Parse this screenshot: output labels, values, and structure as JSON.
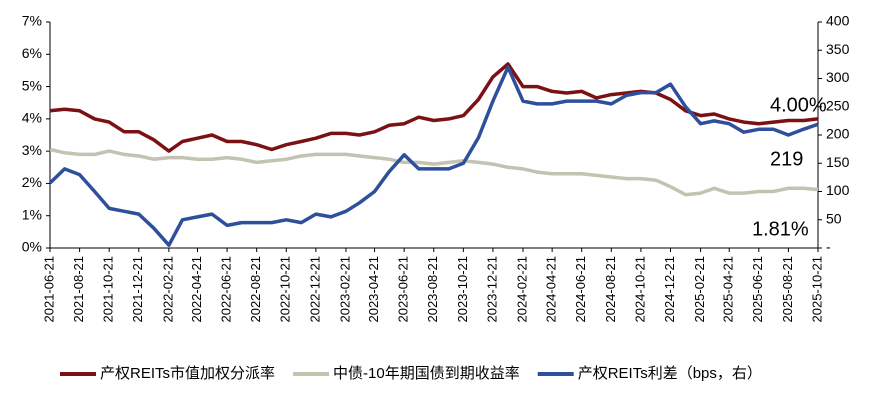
{
  "chart_data": {
    "type": "line",
    "x": [
      "2021-06-21",
      "2021-07-21",
      "2021-08-21",
      "2021-09-21",
      "2021-10-21",
      "2021-11-21",
      "2021-12-21",
      "2022-01-21",
      "2022-02-21",
      "2022-03-21",
      "2022-04-21",
      "2022-05-21",
      "2022-06-21",
      "2022-07-21",
      "2022-08-21",
      "2022-09-21",
      "2022-10-21",
      "2022-11-21",
      "2022-12-21",
      "2023-01-21",
      "2023-02-21",
      "2023-03-21",
      "2023-04-21",
      "2023-05-21",
      "2023-06-21",
      "2023-07-21",
      "2023-08-21",
      "2023-09-21",
      "2023-10-21",
      "2023-11-21",
      "2023-12-21",
      "2024-01-21",
      "2024-02-21",
      "2024-03-21",
      "2024-04-21",
      "2024-05-21",
      "2024-06-21",
      "2024-07-21",
      "2024-08-21",
      "2024-09-21",
      "2024-10-21",
      "2024-11-21",
      "2024-12-21",
      "2025-01-21",
      "2025-02-21",
      "2025-03-21",
      "2025-04-21",
      "2025-05-21",
      "2025-06-21",
      "2025-07-21",
      "2025-08-21",
      "2025-09-21",
      "2025-10-21"
    ],
    "xticks": [
      "2021-06-21",
      "2021-08-21",
      "2021-10-21",
      "2021-12-21",
      "2022-02-21",
      "2022-04-21",
      "2022-06-21",
      "2022-08-21",
      "2022-10-21",
      "2022-12-21",
      "2023-02-21",
      "2023-04-21",
      "2023-06-21",
      "2023-08-21",
      "2023-10-21",
      "2023-12-21",
      "2024-02-21",
      "2024-04-21",
      "2024-06-21",
      "2024-08-21",
      "2024-10-21",
      "2024-12-21",
      "2025-02-21",
      "2025-04-21",
      "2025-06-21",
      "2025-08-21",
      "2025-10-21"
    ],
    "ylim": [
      0,
      7
    ],
    "yticks": [
      {
        "value": 0,
        "label": "0%"
      },
      {
        "value": 1,
        "label": "1%"
      },
      {
        "value": 2,
        "label": "2%"
      },
      {
        "value": 3,
        "label": "3%"
      },
      {
        "value": 4,
        "label": "4%"
      },
      {
        "value": 5,
        "label": "5%"
      },
      {
        "value": 6,
        "label": "6%"
      },
      {
        "value": 7,
        "label": "7%"
      }
    ],
    "y2lim": [
      0,
      400
    ],
    "y2ticks": [
      {
        "value": 0,
        "label": "-"
      },
      50,
      100,
      150,
      200,
      250,
      300,
      350,
      400
    ],
    "series": [
      {
        "name": "产权REITs市值加权分派率",
        "color": "#7b1113",
        "values": [
          4.25,
          4.3,
          4.25,
          4.0,
          3.9,
          3.6,
          3.6,
          3.35,
          3.0,
          3.3,
          3.4,
          3.5,
          3.3,
          3.3,
          3.2,
          3.05,
          3.2,
          3.3,
          3.4,
          3.55,
          3.55,
          3.5,
          3.6,
          3.8,
          3.85,
          4.05,
          3.95,
          4.0,
          4.1,
          4.6,
          5.3,
          5.7,
          5.0,
          5.0,
          4.85,
          4.8,
          4.85,
          4.65,
          4.75,
          4.8,
          4.85,
          4.8,
          4.6,
          4.25,
          4.1,
          4.15,
          4.0,
          3.9,
          3.85,
          3.9,
          3.95,
          3.95,
          4.0
        ]
      },
      {
        "name": "中债-10年期国债到期收益率",
        "color": "#c4c3b2",
        "values": [
          3.05,
          2.95,
          2.9,
          2.9,
          3.0,
          2.9,
          2.85,
          2.75,
          2.8,
          2.8,
          2.75,
          2.75,
          2.8,
          2.75,
          2.65,
          2.7,
          2.75,
          2.85,
          2.9,
          2.9,
          2.9,
          2.85,
          2.8,
          2.75,
          2.65,
          2.65,
          2.6,
          2.65,
          2.7,
          2.65,
          2.6,
          2.5,
          2.45,
          2.35,
          2.3,
          2.3,
          2.3,
          2.25,
          2.2,
          2.15,
          2.15,
          2.1,
          1.9,
          1.65,
          1.7,
          1.85,
          1.7,
          1.7,
          1.75,
          1.75,
          1.85,
          1.85,
          1.81
        ]
      },
      {
        "name": "产权REITs利差（bps，右）",
        "color": "#2e4f9c",
        "axis": "y2",
        "values": [
          115,
          140,
          130,
          100,
          70,
          65,
          60,
          35,
          5,
          50,
          55,
          60,
          40,
          45,
          45,
          45,
          50,
          45,
          60,
          55,
          65,
          80,
          100,
          135,
          165,
          140,
          140,
          140,
          150,
          195,
          260,
          320,
          260,
          255,
          255,
          260,
          260,
          260,
          255,
          270,
          275,
          275,
          290,
          250,
          220,
          225,
          220,
          205,
          210,
          210,
          200,
          210,
          219
        ]
      }
    ],
    "annotations": [
      "4.00%",
      "219",
      "1.81%"
    ]
  }
}
